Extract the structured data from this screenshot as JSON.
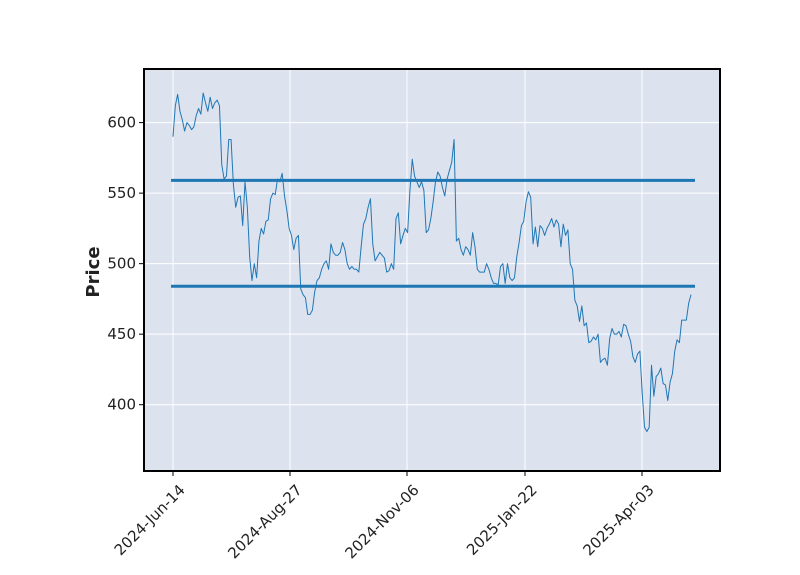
{
  "chart_data": {
    "type": "line",
    "title": "",
    "xlabel": "",
    "ylabel": "Price",
    "x_tick_labels": [
      "2024-Jun-14",
      "2024-Aug-27",
      "2024-Nov-06",
      "2025-Jan-22",
      "2025-Apr-03"
    ],
    "y_ticks": [
      400,
      450,
      500,
      550,
      600
    ],
    "ylim": [
      353,
      638
    ],
    "grid": true,
    "background_color": "#dde2ef",
    "line_color": "#1f77b4",
    "hlines": [
      {
        "value": 559,
        "color": "#1f77b4"
      },
      {
        "value": 484,
        "color": "#1f77b4"
      }
    ],
    "series": [
      {
        "values": [
          590,
          612,
          620,
          608,
          602,
          594,
          600,
          598,
          595,
          597,
          605,
          610,
          606,
          621,
          614,
          608,
          618,
          610,
          614,
          616,
          612,
          570,
          560,
          562,
          588,
          588,
          556,
          540,
          547,
          548,
          527,
          558,
          540,
          505,
          488,
          500,
          490,
          516,
          525,
          521,
          530,
          531,
          546,
          550,
          549,
          560,
          558,
          564,
          548,
          538,
          525,
          520,
          510,
          518,
          520,
          482,
          478,
          476,
          464,
          464,
          467,
          480,
          488,
          490,
          496,
          500,
          502,
          496,
          514,
          508,
          506,
          506,
          508,
          515,
          510,
          500,
          496,
          498,
          496,
          496,
          494,
          512,
          528,
          532,
          540,
          546,
          514,
          502,
          505,
          508,
          506,
          504,
          494,
          495,
          500,
          496,
          532,
          536,
          514,
          520,
          525,
          522,
          552,
          574,
          562,
          558,
          554,
          558,
          552,
          522,
          524,
          532,
          544,
          558,
          565,
          562,
          554,
          548,
          560,
          566,
          572,
          588,
          516,
          518,
          510,
          506,
          512,
          510,
          506,
          522,
          512,
          496,
          494,
          494,
          494,
          500,
          496,
          490,
          486,
          486,
          485,
          498,
          500,
          486,
          500,
          490,
          488,
          490,
          505,
          515,
          527,
          530,
          544,
          551,
          547,
          514,
          526,
          512,
          527,
          525,
          520,
          525,
          528,
          532,
          526,
          531,
          528,
          512,
          528,
          520,
          524,
          500,
          496,
          474,
          470,
          459,
          470,
          456,
          458,
          444,
          445,
          448,
          446,
          450,
          430,
          432,
          433,
          428,
          447,
          454,
          450,
          450,
          452,
          448,
          457,
          456,
          450,
          445,
          434,
          430,
          436,
          438,
          408,
          384,
          381,
          384,
          428,
          406,
          420,
          422,
          426,
          415,
          414,
          403,
          416,
          422,
          438,
          446,
          444,
          460,
          460,
          460,
          472,
          478
        ]
      }
    ]
  }
}
